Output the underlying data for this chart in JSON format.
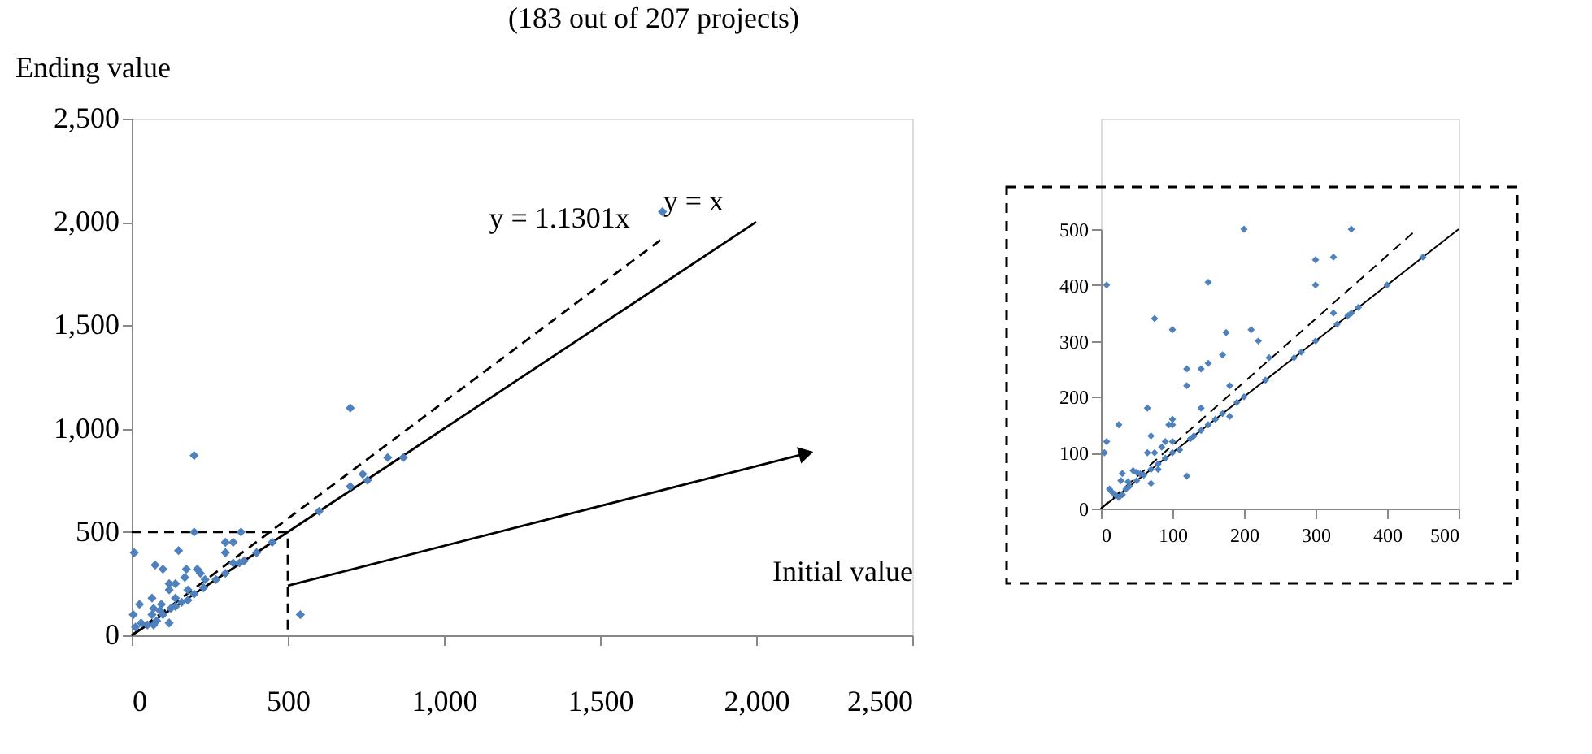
{
  "chart_data": [
    {
      "type": "scatter",
      "title": "(183 out of 207 projects)",
      "xlabel": "Initial value",
      "ylabel": "Ending value",
      "xlim": [
        0,
        2500
      ],
      "xticks": [
        0,
        500,
        {
          "value": 1000,
          "label": "1,000"
        },
        {
          "value": 1500,
          "label": "1,500"
        },
        {
          "value": 2000,
          "label": "2,000"
        },
        {
          "value": 2500,
          "label": "2,500"
        }
      ],
      "ylim": [
        0,
        2500
      ],
      "yticks": [
        0,
        500,
        {
          "value": 1000,
          "label": "1,000"
        },
        {
          "value": 1500,
          "label": "1,500"
        },
        {
          "value": 2000,
          "label": "2,000"
        },
        {
          "value": 2500,
          "label": "2,500"
        }
      ],
      "grid": false,
      "series": [
        {
          "color": "#4f81bd",
          "marker": "diamond",
          "x": [
            5,
            8,
            12,
            25,
            30,
            50,
            65,
            65,
            70,
            70,
            75,
            80,
            90,
            95,
            100,
            100,
            120,
            120,
            120,
            125,
            140,
            140,
            140,
            150,
            160,
            170,
            175,
            180,
            180,
            200,
            200,
            210,
            220,
            230,
            235,
            270,
            300,
            300,
            300,
            325,
            325,
            345,
            350,
            360,
            400,
            450,
            540,
            600,
            700,
            700,
            200,
            740,
            755,
            820,
            870,
            1700
          ],
          "values": [
            100,
            400,
            40,
            150,
            60,
            50,
            100,
            180,
            130,
            50,
            340,
            70,
            120,
            150,
            320,
            100,
            250,
            220,
            60,
            130,
            250,
            180,
            140,
            410,
            160,
            280,
            320,
            220,
            170,
            500,
            200,
            320,
            300,
            230,
            270,
            270,
            450,
            400,
            300,
            450,
            350,
            350,
            500,
            360,
            400,
            450,
            100,
            600,
            720,
            1100,
            870,
            780,
            750,
            860,
            860,
            2050
          ]
        },
        {
          "type": "line",
          "name": "y = 1.1301x",
          "color": "#000000",
          "line_style": "dashed",
          "marker": "none",
          "x": [
            0,
            1700
          ],
          "values": [
            0,
            1920
          ]
        },
        {
          "type": "line",
          "name": "y = x",
          "color": "#000000",
          "line_style": "solid",
          "marker": "none",
          "x": [
            0,
            2000
          ],
          "values": [
            0,
            2000
          ]
        },
        {
          "type": "line",
          "color": "#000000",
          "line_style": "dashed",
          "marker": "none",
          "x": [
            0,
            500,
            500
          ],
          "values": [
            500,
            500,
            0
          ]
        },
        {
          "type": "line",
          "color": "#000000",
          "line_style": "solid",
          "marker": "triangle",
          "x": [
            500,
            2160
          ],
          "values": [
            240,
            880
          ]
        }
      ]
    },
    {
      "type": "scatter",
      "xlim": [
        0,
        500
      ],
      "xticks": [
        0,
        100,
        200,
        300,
        400,
        500
      ],
      "ylim": [
        0,
        500
      ],
      "yticks": [
        0,
        100,
        200,
        300,
        400,
        500
      ],
      "grid": false,
      "series": [
        {
          "color": "#4f81bd",
          "marker": "diamond",
          "x": [
            5,
            8,
            8,
            12,
            15,
            20,
            25,
            25,
            28,
            30,
            30,
            35,
            38,
            40,
            45,
            50,
            50,
            55,
            60,
            65,
            65,
            70,
            70,
            70,
            75,
            75,
            80,
            80,
            85,
            90,
            90,
            95,
            100,
            100,
            100,
            100,
            100,
            110,
            120,
            120,
            120,
            125,
            130,
            140,
            140,
            140,
            150,
            150,
            150,
            160,
            170,
            170,
            175,
            180,
            180,
            190,
            200,
            200,
            210,
            220,
            230,
            235,
            270,
            280,
            300,
            300,
            300,
            325,
            325,
            330,
            345,
            350,
            350,
            360,
            400,
            450
          ],
          "values": [
            100,
            120,
            400,
            35,
            30,
            25,
            150,
            20,
            50,
            63,
            25,
            35,
            48,
            40,
            68,
            65,
            50,
            62,
            60,
            100,
            180,
            130,
            45,
            70,
            340,
            100,
            70,
            80,
            110,
            120,
            90,
            150,
            320,
            160,
            150,
            120,
            100,
            105,
            250,
            220,
            58,
            125,
            130,
            250,
            180,
            140,
            405,
            260,
            150,
            160,
            275,
            170,
            315,
            220,
            165,
            190,
            500,
            200,
            320,
            300,
            230,
            270,
            270,
            280,
            445,
            400,
            300,
            450,
            350,
            330,
            345,
            500,
            350,
            360,
            400,
            450
          ]
        },
        {
          "type": "line",
          "color": "#000000",
          "line_style": "dashed",
          "marker": "none",
          "x": [
            0,
            442
          ],
          "values": [
            0,
            500
          ]
        },
        {
          "type": "line",
          "color": "#000000",
          "line_style": "solid",
          "marker": "none",
          "x": [
            0,
            500
          ],
          "values": [
            0,
            500
          ]
        }
      ]
    }
  ]
}
